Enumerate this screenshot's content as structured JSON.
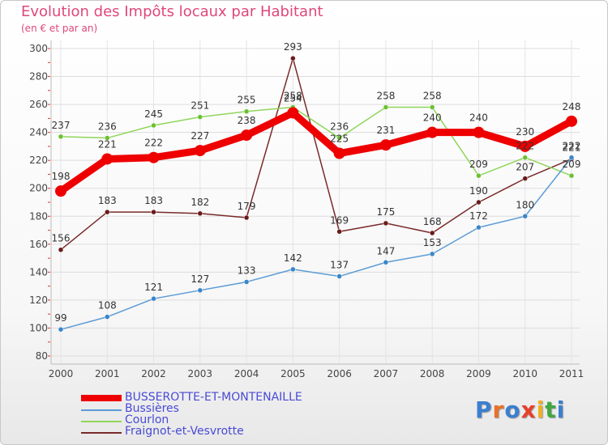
{
  "title": "Evolution des Impôts locaux par Habitant",
  "subtitle": "(en € et par an)",
  "logo": "Proxiti",
  "chart_data": {
    "type": "line",
    "title": "Evolution des Impôts locaux par Habitant",
    "subtitle": "(en € et par an)",
    "xlabel": "",
    "ylabel": "",
    "x": [
      "2000",
      "2001",
      "2002",
      "2003",
      "2004",
      "2005",
      "2006",
      "2007",
      "2008",
      "2009",
      "2010",
      "2011"
    ],
    "ylim": [
      80,
      300
    ],
    "yticks": [
      80,
      100,
      120,
      140,
      160,
      180,
      200,
      220,
      240,
      260,
      280,
      300
    ],
    "grid": true,
    "legend_position": "bottom-left",
    "series": [
      {
        "name": "BUSSEROTTE-ET-MONTENAILLE",
        "color": "#ee0000",
        "width": 9,
        "marker": 7,
        "values": [
          198,
          221,
          222,
          227,
          238,
          254,
          225,
          231,
          240,
          240,
          230,
          248
        ],
        "label_side": [
          -1,
          -1,
          -1,
          -1,
          -1,
          -1,
          -1,
          -1,
          -1,
          -1,
          -1,
          -1
        ]
      },
      {
        "name": "Bussières",
        "color": "#5b9bd5",
        "marker_color": "#3a86c8",
        "width": 1.5,
        "marker": 3,
        "values": [
          99,
          108,
          121,
          127,
          133,
          142,
          137,
          147,
          153,
          172,
          180,
          222
        ],
        "label_side": [
          -1,
          -1,
          -1,
          -1,
          -1,
          -1,
          -1,
          -1,
          -1,
          -1,
          -1,
          -1
        ]
      },
      {
        "name": "Courlon",
        "color": "#90d65a",
        "marker_color": "#6cc033",
        "width": 1.5,
        "marker": 3,
        "values": [
          237,
          236,
          245,
          251,
          255,
          258,
          236,
          258,
          258,
          209,
          222,
          209
        ],
        "label_side": [
          -1,
          -1,
          -1,
          -1,
          -1,
          -1,
          -1,
          -1,
          -1,
          -1,
          -1,
          -1
        ]
      },
      {
        "name": "Fraignot-et-Vesvrotte",
        "color": "#7a2a2a",
        "marker_color": "#6a1a1a",
        "width": 1.5,
        "marker": 3,
        "values": [
          156,
          183,
          183,
          182,
          179,
          293,
          169,
          175,
          168,
          190,
          207,
          221
        ],
        "label_side": [
          -1,
          -1,
          -1,
          -1,
          -1,
          -1,
          -1,
          -1,
          -1,
          -1,
          -1,
          -1
        ]
      }
    ]
  }
}
